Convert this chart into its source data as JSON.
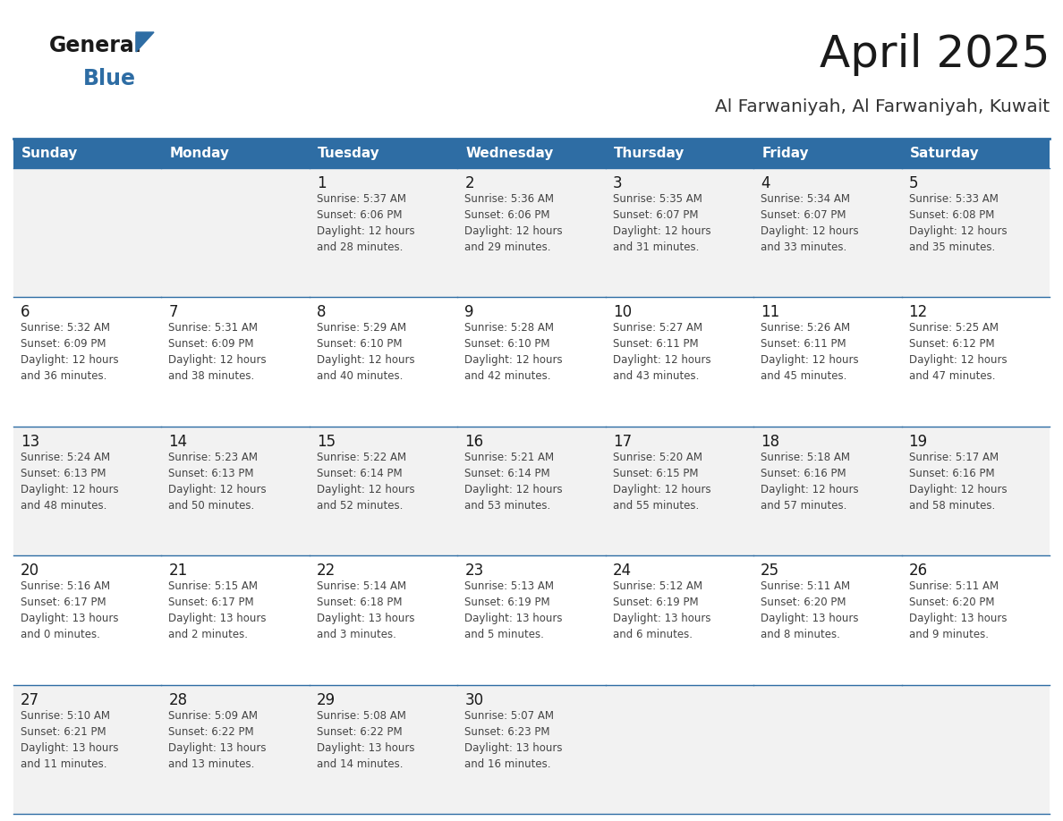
{
  "title": "April 2025",
  "subtitle": "Al Farwaniyah, Al Farwaniyah, Kuwait",
  "days_of_week": [
    "Sunday",
    "Monday",
    "Tuesday",
    "Wednesday",
    "Thursday",
    "Friday",
    "Saturday"
  ],
  "header_bg": "#2E6DA4",
  "header_text": "#FFFFFF",
  "cell_bg_row0": "#F2F2F2",
  "cell_bg_row1": "#FFFFFF",
  "cell_bg_row2": "#F2F2F2",
  "cell_bg_row3": "#FFFFFF",
  "cell_bg_row4": "#F2F2F2",
  "line_color": "#2E6DA4",
  "day_num_color": "#1a1a1a",
  "cell_text_color": "#444444",
  "title_color": "#1a1a1a",
  "subtitle_color": "#333333",
  "logo_general_color": "#1a1a1a",
  "logo_blue_color": "#2E6DA4",
  "logo_triangle_color": "#2E6DA4",
  "calendar": [
    [
      {
        "day": "",
        "info": ""
      },
      {
        "day": "",
        "info": ""
      },
      {
        "day": "1",
        "info": "Sunrise: 5:37 AM\nSunset: 6:06 PM\nDaylight: 12 hours\nand 28 minutes."
      },
      {
        "day": "2",
        "info": "Sunrise: 5:36 AM\nSunset: 6:06 PM\nDaylight: 12 hours\nand 29 minutes."
      },
      {
        "day": "3",
        "info": "Sunrise: 5:35 AM\nSunset: 6:07 PM\nDaylight: 12 hours\nand 31 minutes."
      },
      {
        "day": "4",
        "info": "Sunrise: 5:34 AM\nSunset: 6:07 PM\nDaylight: 12 hours\nand 33 minutes."
      },
      {
        "day": "5",
        "info": "Sunrise: 5:33 AM\nSunset: 6:08 PM\nDaylight: 12 hours\nand 35 minutes."
      }
    ],
    [
      {
        "day": "6",
        "info": "Sunrise: 5:32 AM\nSunset: 6:09 PM\nDaylight: 12 hours\nand 36 minutes."
      },
      {
        "day": "7",
        "info": "Sunrise: 5:31 AM\nSunset: 6:09 PM\nDaylight: 12 hours\nand 38 minutes."
      },
      {
        "day": "8",
        "info": "Sunrise: 5:29 AM\nSunset: 6:10 PM\nDaylight: 12 hours\nand 40 minutes."
      },
      {
        "day": "9",
        "info": "Sunrise: 5:28 AM\nSunset: 6:10 PM\nDaylight: 12 hours\nand 42 minutes."
      },
      {
        "day": "10",
        "info": "Sunrise: 5:27 AM\nSunset: 6:11 PM\nDaylight: 12 hours\nand 43 minutes."
      },
      {
        "day": "11",
        "info": "Sunrise: 5:26 AM\nSunset: 6:11 PM\nDaylight: 12 hours\nand 45 minutes."
      },
      {
        "day": "12",
        "info": "Sunrise: 5:25 AM\nSunset: 6:12 PM\nDaylight: 12 hours\nand 47 minutes."
      }
    ],
    [
      {
        "day": "13",
        "info": "Sunrise: 5:24 AM\nSunset: 6:13 PM\nDaylight: 12 hours\nand 48 minutes."
      },
      {
        "day": "14",
        "info": "Sunrise: 5:23 AM\nSunset: 6:13 PM\nDaylight: 12 hours\nand 50 minutes."
      },
      {
        "day": "15",
        "info": "Sunrise: 5:22 AM\nSunset: 6:14 PM\nDaylight: 12 hours\nand 52 minutes."
      },
      {
        "day": "16",
        "info": "Sunrise: 5:21 AM\nSunset: 6:14 PM\nDaylight: 12 hours\nand 53 minutes."
      },
      {
        "day": "17",
        "info": "Sunrise: 5:20 AM\nSunset: 6:15 PM\nDaylight: 12 hours\nand 55 minutes."
      },
      {
        "day": "18",
        "info": "Sunrise: 5:18 AM\nSunset: 6:16 PM\nDaylight: 12 hours\nand 57 minutes."
      },
      {
        "day": "19",
        "info": "Sunrise: 5:17 AM\nSunset: 6:16 PM\nDaylight: 12 hours\nand 58 minutes."
      }
    ],
    [
      {
        "day": "20",
        "info": "Sunrise: 5:16 AM\nSunset: 6:17 PM\nDaylight: 13 hours\nand 0 minutes."
      },
      {
        "day": "21",
        "info": "Sunrise: 5:15 AM\nSunset: 6:17 PM\nDaylight: 13 hours\nand 2 minutes."
      },
      {
        "day": "22",
        "info": "Sunrise: 5:14 AM\nSunset: 6:18 PM\nDaylight: 13 hours\nand 3 minutes."
      },
      {
        "day": "23",
        "info": "Sunrise: 5:13 AM\nSunset: 6:19 PM\nDaylight: 13 hours\nand 5 minutes."
      },
      {
        "day": "24",
        "info": "Sunrise: 5:12 AM\nSunset: 6:19 PM\nDaylight: 13 hours\nand 6 minutes."
      },
      {
        "day": "25",
        "info": "Sunrise: 5:11 AM\nSunset: 6:20 PM\nDaylight: 13 hours\nand 8 minutes."
      },
      {
        "day": "26",
        "info": "Sunrise: 5:11 AM\nSunset: 6:20 PM\nDaylight: 13 hours\nand 9 minutes."
      }
    ],
    [
      {
        "day": "27",
        "info": "Sunrise: 5:10 AM\nSunset: 6:21 PM\nDaylight: 13 hours\nand 11 minutes."
      },
      {
        "day": "28",
        "info": "Sunrise: 5:09 AM\nSunset: 6:22 PM\nDaylight: 13 hours\nand 13 minutes."
      },
      {
        "day": "29",
        "info": "Sunrise: 5:08 AM\nSunset: 6:22 PM\nDaylight: 13 hours\nand 14 minutes."
      },
      {
        "day": "30",
        "info": "Sunrise: 5:07 AM\nSunset: 6:23 PM\nDaylight: 13 hours\nand 16 minutes."
      },
      {
        "day": "",
        "info": ""
      },
      {
        "day": "",
        "info": ""
      },
      {
        "day": "",
        "info": ""
      }
    ]
  ]
}
